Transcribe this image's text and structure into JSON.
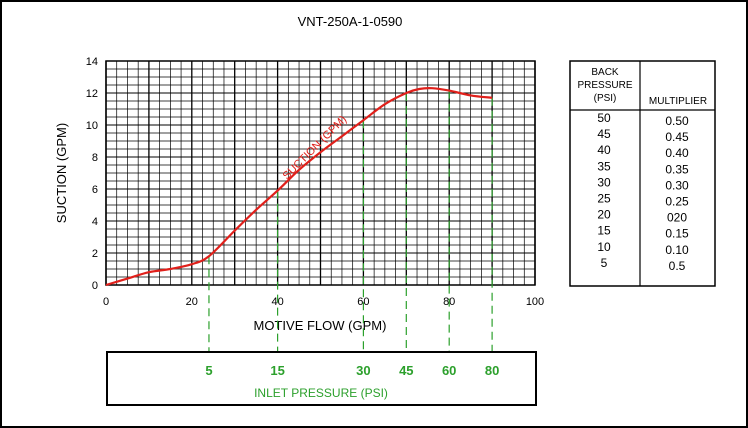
{
  "chart_data": {
    "type": "line",
    "title": "VNT-250A-1-0590",
    "xlabel": "MOTIVE FLOW (GPM)",
    "ylabel": "SUCTION (GPM)",
    "xlim": [
      0,
      100
    ],
    "ylim": [
      0,
      14
    ],
    "x_ticks": [
      "0",
      "20",
      "40",
      "60",
      "80",
      "100"
    ],
    "y_ticks": [
      "0",
      "2",
      "4",
      "6",
      "8",
      "10",
      "12",
      "14"
    ],
    "grid": true,
    "series": [
      {
        "name": "SUCTION (GPM)",
        "color": "#e0201b",
        "x": [
          0,
          5,
          10,
          15,
          20,
          24,
          30,
          35,
          40,
          45,
          50,
          55,
          60,
          65,
          70,
          73,
          76,
          80,
          85,
          90
        ],
        "y": [
          0,
          0.4,
          0.8,
          1.0,
          1.3,
          1.8,
          3.4,
          4.7,
          5.9,
          7.2,
          8.3,
          9.3,
          10.3,
          11.3,
          12.0,
          12.25,
          12.3,
          12.15,
          11.85,
          11.7
        ]
      }
    ],
    "inlet_pressure": {
      "label": "INLET PRESSURE (PSI)",
      "color": "#2ca02c",
      "markers": [
        {
          "motive_flow": 24,
          "psi": "5"
        },
        {
          "motive_flow": 40,
          "psi": "15"
        },
        {
          "motive_flow": 60,
          "psi": "30"
        },
        {
          "motive_flow": 70,
          "psi": "45"
        },
        {
          "motive_flow": 80,
          "psi": "60"
        },
        {
          "motive_flow": 90,
          "psi": "80"
        }
      ]
    },
    "multiplier_table": {
      "headers": {
        "back_pressure": [
          "BACK",
          "PRESSURE",
          "(PSI)"
        ],
        "multiplier": "MULTIPLIER"
      },
      "rows": [
        {
          "psi": "50",
          "multiplier": "0.50"
        },
        {
          "psi": "45",
          "multiplier": "0.45"
        },
        {
          "psi": "40",
          "multiplier": "0.40"
        },
        {
          "psi": "35",
          "multiplier": "0.35"
        },
        {
          "psi": "30",
          "multiplier": "0.30"
        },
        {
          "psi": "25",
          "multiplier": "0.25"
        },
        {
          "psi": "20",
          "multiplier": "020"
        },
        {
          "psi": "15",
          "multiplier": "0.15"
        },
        {
          "psi": "10",
          "multiplier": "0.10"
        },
        {
          "psi": "5",
          "multiplier": "0.5"
        }
      ]
    }
  }
}
